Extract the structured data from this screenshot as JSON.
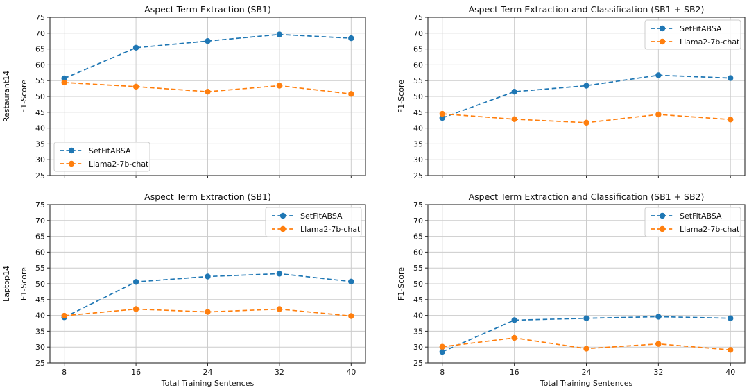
{
  "figure": {
    "description": "2x2 grid of F1-Score line charts comparing SetFitABSA and Llama2-7b-chat on Restaurant14 and Laptop14 datasets"
  },
  "style": {
    "background": "#ffffff",
    "grid_color": "#cccccc",
    "spine_color": "#2b2b2b",
    "text_color": "#111111",
    "legend_border_color": "#cccccc",
    "legend_fill": "rgba(255,255,255,0.85)",
    "setfit_color": "#1f77b4",
    "llama_color": "#ff7f0e"
  },
  "shared": {
    "xlabel": "Total Training Sentences",
    "ylabel": "F1-Score",
    "legend_labels": [
      "SetFitABSA",
      "Llama2-7b-chat"
    ]
  },
  "chart_data": [
    {
      "type": "line",
      "title": "Aspect Term Extraction (SB1)",
      "row_label": "Restaurant14",
      "ylabel": "F1-Score",
      "xlabel": "",
      "x": [
        8,
        16,
        24,
        32,
        40
      ],
      "xticks": [
        8,
        16,
        24,
        32,
        40
      ],
      "yticks": [
        25,
        30,
        35,
        40,
        45,
        50,
        55,
        60,
        65,
        70,
        75
      ],
      "xlim": [
        6.4,
        41.6
      ],
      "ylim": [
        25,
        75
      ],
      "grid": true,
      "legend_position": "lower-left",
      "show_x_tick_labels": false,
      "series": [
        {
          "name": "SetFitABSA",
          "color": "#1f77b4",
          "linestyle": "dashed",
          "marker": "circle",
          "values": [
            55.7,
            65.4,
            67.5,
            69.6,
            68.4
          ]
        },
        {
          "name": "Llama2-7b-chat",
          "color": "#ff7f0e",
          "linestyle": "dashed",
          "marker": "circle",
          "values": [
            54.4,
            53.1,
            51.5,
            53.4,
            50.8
          ]
        }
      ]
    },
    {
      "type": "line",
      "title": "Aspect Term Extraction and Classification (SB1 + SB2)",
      "row_label": "",
      "ylabel": "F1-Score",
      "xlabel": "",
      "x": [
        8,
        16,
        24,
        32,
        40
      ],
      "xticks": [
        8,
        16,
        24,
        32,
        40
      ],
      "yticks": [
        25,
        30,
        35,
        40,
        45,
        50,
        55,
        60,
        65,
        70,
        75
      ],
      "xlim": [
        6.4,
        41.6
      ],
      "ylim": [
        25,
        75
      ],
      "grid": true,
      "legend_position": "upper-right",
      "show_x_tick_labels": false,
      "series": [
        {
          "name": "SetFitABSA",
          "color": "#1f77b4",
          "linestyle": "dashed",
          "marker": "circle",
          "values": [
            43.2,
            51.5,
            53.4,
            56.7,
            55.8
          ]
        },
        {
          "name": "Llama2-7b-chat",
          "color": "#ff7f0e",
          "linestyle": "dashed",
          "marker": "circle",
          "values": [
            44.5,
            42.8,
            41.7,
            44.3,
            42.7
          ]
        }
      ]
    },
    {
      "type": "line",
      "title": "Aspect Term Extraction (SB1)",
      "row_label": "Laptop14",
      "ylabel": "F1-Score",
      "xlabel": "Total Training Sentences",
      "x": [
        8,
        16,
        24,
        32,
        40
      ],
      "xticks": [
        8,
        16,
        24,
        32,
        40
      ],
      "yticks": [
        25,
        30,
        35,
        40,
        45,
        50,
        55,
        60,
        65,
        70,
        75
      ],
      "xlim": [
        6.4,
        41.6
      ],
      "ylim": [
        25,
        75
      ],
      "grid": true,
      "legend_position": "upper-right",
      "show_x_tick_labels": true,
      "series": [
        {
          "name": "SetFitABSA",
          "color": "#1f77b4",
          "linestyle": "dashed",
          "marker": "circle",
          "values": [
            39.4,
            50.6,
            52.3,
            53.2,
            50.7
          ]
        },
        {
          "name": "Llama2-7b-chat",
          "color": "#ff7f0e",
          "linestyle": "dashed",
          "marker": "circle",
          "values": [
            39.9,
            42.0,
            41.1,
            42.0,
            39.8
          ]
        }
      ]
    },
    {
      "type": "line",
      "title": "Aspect Term Extraction and Classification (SB1 + SB2)",
      "row_label": "",
      "ylabel": "F1-Score",
      "xlabel": "Total Training Sentences",
      "x": [
        8,
        16,
        24,
        32,
        40
      ],
      "xticks": [
        8,
        16,
        24,
        32,
        40
      ],
      "yticks": [
        25,
        30,
        35,
        40,
        45,
        50,
        55,
        60,
        65,
        70,
        75
      ],
      "xlim": [
        6.4,
        41.6
      ],
      "ylim": [
        25,
        75
      ],
      "grid": true,
      "legend_position": "upper-right",
      "show_x_tick_labels": true,
      "series": [
        {
          "name": "SetFitABSA",
          "color": "#1f77b4",
          "linestyle": "dashed",
          "marker": "circle",
          "values": [
            28.5,
            38.5,
            39.1,
            39.6,
            39.1
          ]
        },
        {
          "name": "Llama2-7b-chat",
          "color": "#ff7f0e",
          "linestyle": "dashed",
          "marker": "circle",
          "values": [
            30.1,
            32.9,
            29.5,
            31.0,
            29.1
          ]
        }
      ]
    }
  ]
}
